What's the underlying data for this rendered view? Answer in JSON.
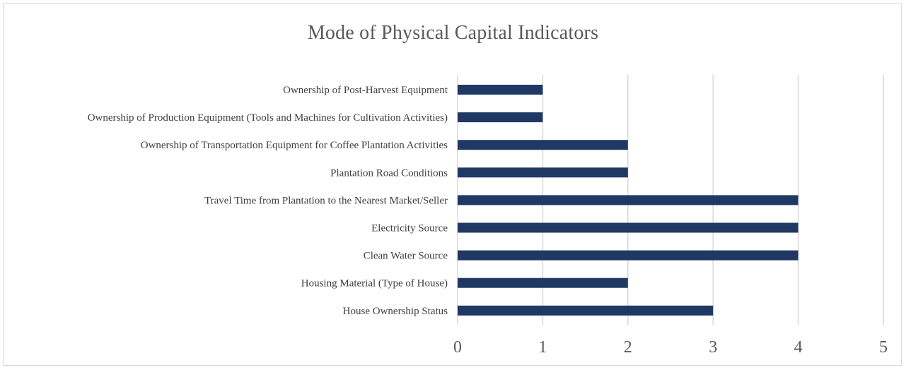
{
  "chart_data": {
    "type": "bar",
    "orientation": "horizontal",
    "title": "Mode of Physical Capital Indicators",
    "xlabel": "",
    "ylabel": "",
    "xlim": [
      0,
      5
    ],
    "xticks": [
      "0",
      "1",
      "2",
      "3",
      "4",
      "5"
    ],
    "grid": "vertical",
    "legend": "none",
    "bar_color": "#203864",
    "categories": [
      "Ownership of Post-Harvest Equipment",
      "Ownership of Production Equipment (Tools and Machines for Cultivation Activities)",
      "Ownership of Transportation Equipment for Coffee Plantation Activities",
      "Plantation Road Conditions",
      "Travel Time from Plantation to the Nearest Market/Seller",
      "Electricity Source",
      "Clean Water Source",
      "Housing Material (Type of House)",
      "House Ownership Status"
    ],
    "values": [
      1,
      1,
      2,
      2,
      4,
      4,
      4,
      2,
      3
    ]
  }
}
